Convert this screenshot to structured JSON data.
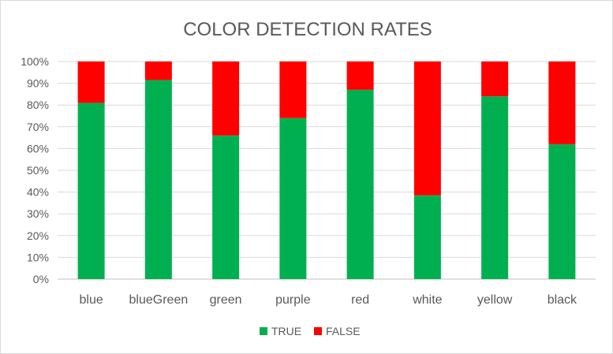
{
  "chart_data": {
    "type": "bar",
    "stacked": true,
    "percent": true,
    "title": "COLOR DETECTION RATES",
    "xlabel": "",
    "ylabel": "",
    "ylim": [
      0,
      100
    ],
    "y_ticks": [
      "0%",
      "10%",
      "20%",
      "30%",
      "40%",
      "50%",
      "60%",
      "70%",
      "80%",
      "90%",
      "100%"
    ],
    "grid": true,
    "legend_position": "bottom",
    "categories": [
      "blue",
      "blueGreen",
      "green",
      "purple",
      "red",
      "white",
      "yellow",
      "black"
    ],
    "series": [
      {
        "name": "TRUE",
        "color": "#00b050",
        "values": [
          81,
          91.5,
          66,
          74,
          87,
          38.5,
          84,
          62
        ]
      },
      {
        "name": "FALSE",
        "color": "#ff0000",
        "values": [
          19,
          8.5,
          34,
          26,
          13,
          61.5,
          16,
          38
        ]
      }
    ]
  }
}
